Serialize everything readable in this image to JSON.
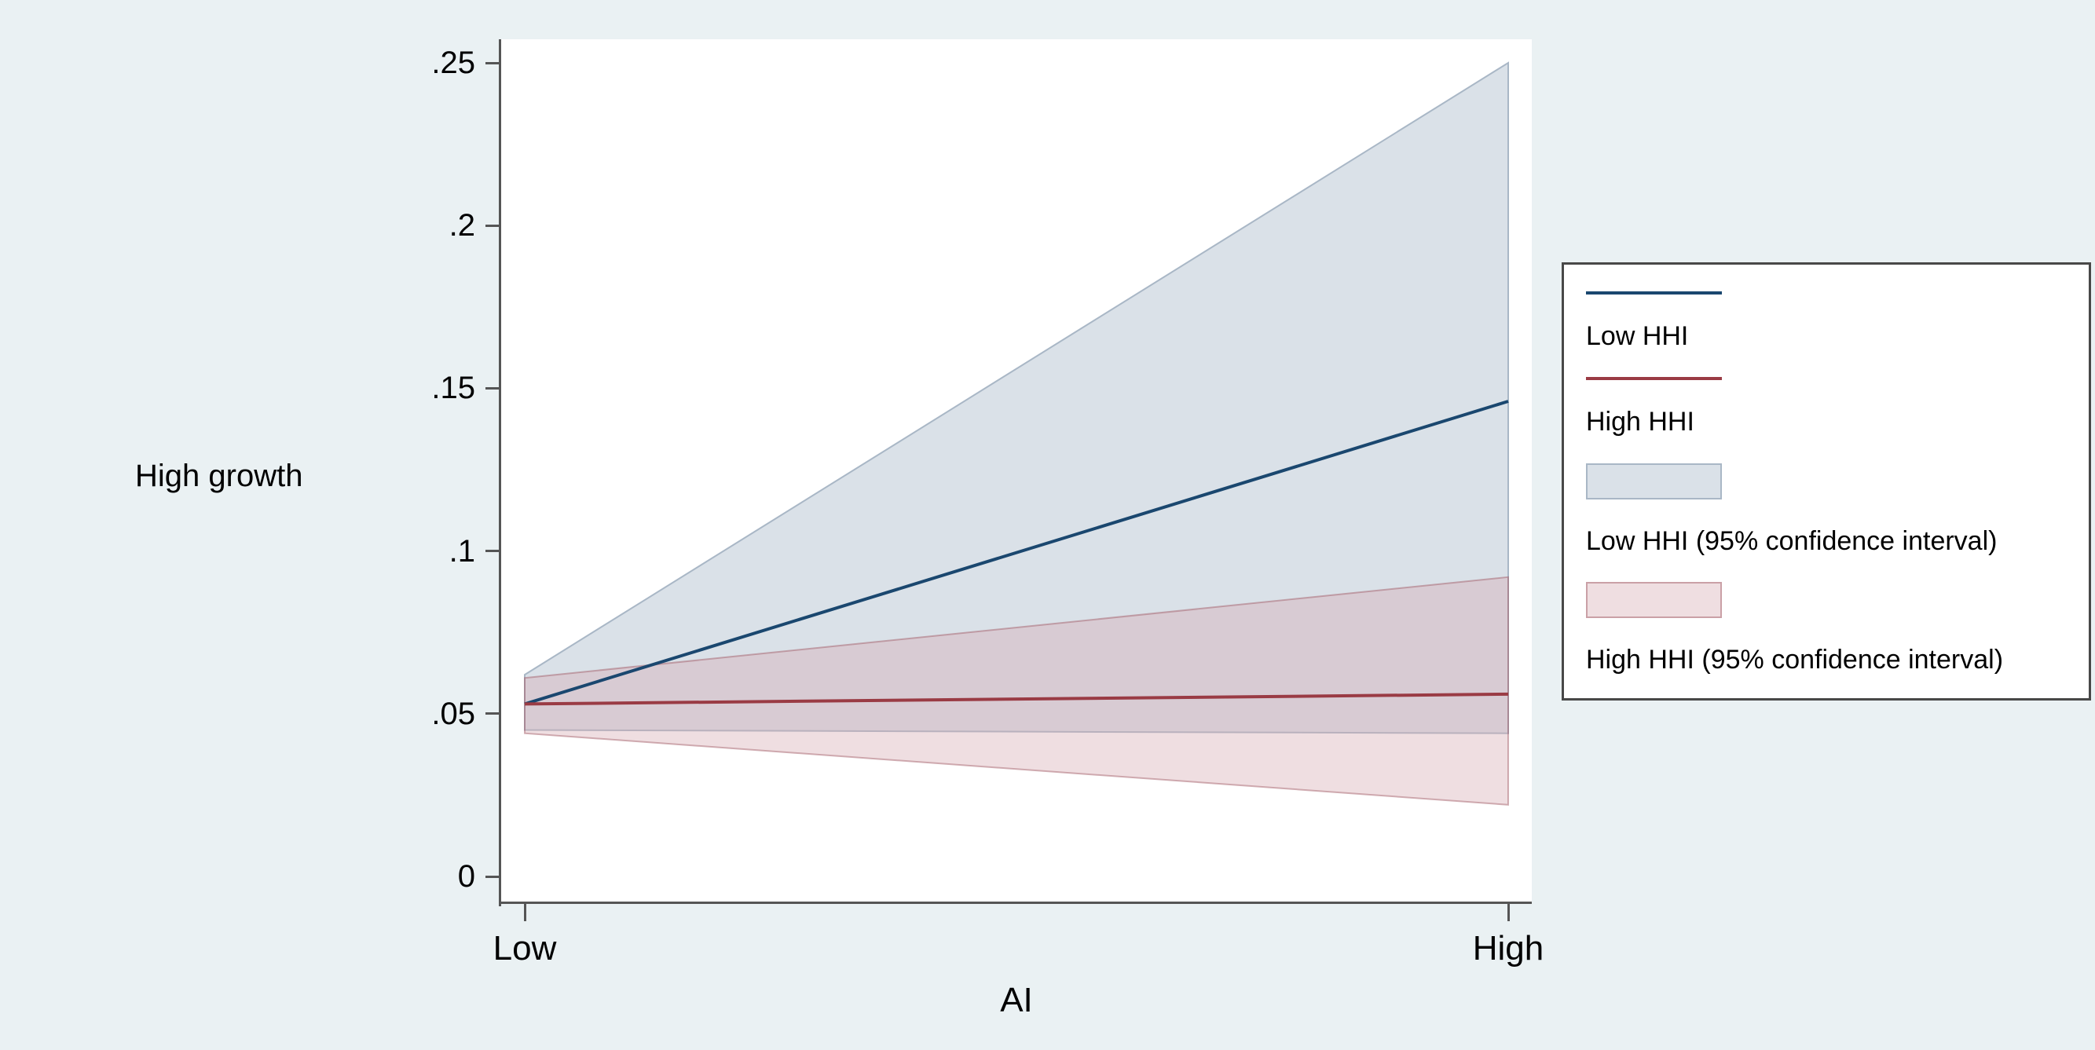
{
  "figure": {
    "background": "#eaf1f3",
    "plot_background": "#ffffff",
    "axis_color": "#555555"
  },
  "chart_data": {
    "type": "line",
    "title": "",
    "xlabel": "AI",
    "ylabel": "High growth",
    "x_categories": [
      "Low",
      "High"
    ],
    "ylim": [
      0,
      0.25
    ],
    "y_ticks": [
      0,
      0.05,
      0.1,
      0.15,
      0.2,
      0.25
    ],
    "y_tick_labels": [
      "0",
      ".05",
      ".1",
      ".15",
      ".2",
      ".25"
    ],
    "grid": false,
    "legend_position": "right",
    "series": [
      {
        "name": "Low HHI",
        "color": "#1a476f",
        "values": [
          0.053,
          0.146
        ],
        "ci_label": "Low HHI (95% confidence interval)",
        "ci_lower": [
          0.045,
          0.044
        ],
        "ci_upper": [
          0.062,
          0.25
        ],
        "ci_fill": "#dae1e8",
        "ci_stroke": "#a9b7c6"
      },
      {
        "name": "High HHI",
        "color": "#9a3b44",
        "values": [
          0.053,
          0.056
        ],
        "ci_label": "High HHI (95% confidence interval)",
        "ci_lower": [
          0.044,
          0.022
        ],
        "ci_upper": [
          0.061,
          0.092
        ],
        "ci_fill": "rgba(212,167,177,0.38)",
        "ci_stroke": "rgba(158,84,95,0.45)"
      }
    ],
    "legend_entries": [
      "Low HHI",
      "High HHI",
      "Low HHI (95% confidence interval)",
      "High HHI (95% confidence interval)"
    ]
  }
}
